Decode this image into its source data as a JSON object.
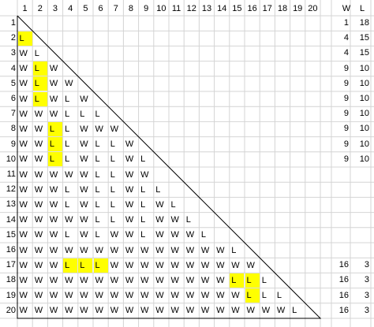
{
  "column_numbers": [
    "1",
    "2",
    "3",
    "4",
    "5",
    "6",
    "7",
    "8",
    "9",
    "10",
    "11",
    "12",
    "13",
    "14",
    "15",
    "16",
    "17",
    "18",
    "19",
    "20"
  ],
  "row_numbers": [
    "1",
    "2",
    "3",
    "4",
    "5",
    "6",
    "7",
    "8",
    "9",
    "10",
    "11",
    "12",
    "13",
    "14",
    "15",
    "16",
    "17",
    "18",
    "19",
    "20"
  ],
  "stat_headers": [
    "W",
    "L"
  ],
  "rows": [
    {
      "cells": [],
      "w": "1",
      "l": "18"
    },
    {
      "cells": [
        "L"
      ],
      "w": "4",
      "l": "15"
    },
    {
      "cells": [
        "W",
        "L"
      ],
      "w": "4",
      "l": "15"
    },
    {
      "cells": [
        "W",
        "L",
        "W"
      ],
      "w": "9",
      "l": "10"
    },
    {
      "cells": [
        "W",
        "L",
        "W",
        "W"
      ],
      "w": "9",
      "l": "10"
    },
    {
      "cells": [
        "W",
        "L",
        "W",
        "L",
        "W"
      ],
      "w": "9",
      "l": "10"
    },
    {
      "cells": [
        "W",
        "W",
        "W",
        "L",
        "L",
        "L"
      ],
      "w": "9",
      "l": "10"
    },
    {
      "cells": [
        "W",
        "W",
        "L",
        "L",
        "W",
        "W",
        "W"
      ],
      "w": "9",
      "l": "10"
    },
    {
      "cells": [
        "W",
        "W",
        "L",
        "L",
        "W",
        "L",
        "L",
        "W"
      ],
      "w": "9",
      "l": "10"
    },
    {
      "cells": [
        "W",
        "W",
        "L",
        "L",
        "W",
        "L",
        "L",
        "W",
        "L"
      ],
      "w": "9",
      "l": "10"
    },
    {
      "cells": [
        "W",
        "W",
        "W",
        "W",
        "W",
        "L",
        "L",
        "W",
        "W"
      ],
      "w": "",
      "l": ""
    },
    {
      "cells": [
        "W",
        "W",
        "W",
        "L",
        "W",
        "L",
        "L",
        "W",
        "L",
        "L"
      ],
      "w": "",
      "l": ""
    },
    {
      "cells": [
        "W",
        "W",
        "W",
        "L",
        "W",
        "L",
        "L",
        "W",
        "L",
        "W",
        "L"
      ],
      "w": "",
      "l": ""
    },
    {
      "cells": [
        "W",
        "W",
        "W",
        "W",
        "W",
        "L",
        "L",
        "W",
        "L",
        "W",
        "W",
        "L"
      ],
      "w": "",
      "l": ""
    },
    {
      "cells": [
        "W",
        "W",
        "W",
        "L",
        "W",
        "L",
        "W",
        "W",
        "L",
        "W",
        "W",
        "W",
        "L"
      ],
      "w": "",
      "l": ""
    },
    {
      "cells": [
        "W",
        "W",
        "W",
        "W",
        "W",
        "W",
        "W",
        "W",
        "W",
        "W",
        "W",
        "W",
        "W",
        "W",
        "L"
      ],
      "w": "",
      "l": ""
    },
    {
      "cells": [
        "W",
        "W",
        "W",
        "L",
        "L",
        "L",
        "W",
        "W",
        "W",
        "W",
        "W",
        "W",
        "W",
        "W",
        "W",
        "W"
      ],
      "w": "16",
      "l": "3"
    },
    {
      "cells": [
        "W",
        "W",
        "W",
        "W",
        "W",
        "W",
        "W",
        "W",
        "W",
        "W",
        "W",
        "W",
        "W",
        "W",
        "L",
        "L",
        "L"
      ],
      "w": "16",
      "l": "3"
    },
    {
      "cells": [
        "W",
        "W",
        "W",
        "W",
        "W",
        "W",
        "W",
        "W",
        "W",
        "W",
        "W",
        "W",
        "W",
        "W",
        "W",
        "L",
        "L",
        "L"
      ],
      "w": "16",
      "l": "3"
    },
    {
      "cells": [
        "W",
        "W",
        "W",
        "W",
        "W",
        "W",
        "W",
        "W",
        "W",
        "W",
        "W",
        "W",
        "W",
        "W",
        "W",
        "W",
        "W",
        "W",
        "L"
      ],
      "w": "16",
      "l": "3"
    }
  ],
  "highlight_color": "#ffff00",
  "highlights": [
    [
      2,
      1
    ],
    [
      4,
      2
    ],
    [
      5,
      2
    ],
    [
      6,
      2
    ],
    [
      8,
      3
    ],
    [
      9,
      3
    ],
    [
      10,
      3
    ],
    [
      17,
      4
    ],
    [
      17,
      5
    ],
    [
      17,
      6
    ],
    [
      18,
      15
    ],
    [
      18,
      16
    ],
    [
      19,
      16
    ]
  ]
}
